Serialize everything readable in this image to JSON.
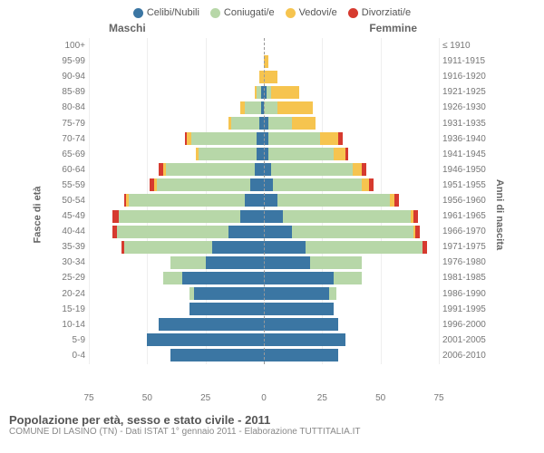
{
  "legend": [
    {
      "label": "Celibi/Nubili",
      "color": "#3b76a3"
    },
    {
      "label": "Coniugati/e",
      "color": "#b7d7a8"
    },
    {
      "label": "Vedovi/e",
      "color": "#f6c44f"
    },
    {
      "label": "Divorziati/e",
      "color": "#d63a2f"
    }
  ],
  "gender": {
    "m": "Maschi",
    "f": "Femmine"
  },
  "axis": {
    "left": "Fasce di età",
    "right": "Anni di nascita"
  },
  "xmax": 75,
  "xticks": [
    75,
    50,
    25,
    0,
    25,
    50,
    75
  ],
  "colors": {
    "single": "#3b76a3",
    "married": "#b7d7a8",
    "widowed": "#f6c44f",
    "divorced": "#d63a2f",
    "grid": "#eeeeee",
    "center": "#999999",
    "bg": "#ffffff"
  },
  "rows": [
    {
      "age": "100+",
      "birth": "≤ 1910",
      "m": [
        0,
        0,
        0,
        0
      ],
      "f": [
        0,
        0,
        0,
        0
      ]
    },
    {
      "age": "95-99",
      "birth": "1911-1915",
      "m": [
        0,
        0,
        0,
        0
      ],
      "f": [
        0,
        0,
        2,
        0
      ]
    },
    {
      "age": "90-94",
      "birth": "1916-1920",
      "m": [
        0,
        0,
        2,
        0
      ],
      "f": [
        0,
        0,
        6,
        0
      ]
    },
    {
      "age": "85-89",
      "birth": "1921-1925",
      "m": [
        1,
        2,
        1,
        0
      ],
      "f": [
        1,
        2,
        12,
        0
      ]
    },
    {
      "age": "80-84",
      "birth": "1926-1930",
      "m": [
        1,
        7,
        2,
        0
      ],
      "f": [
        0,
        6,
        15,
        0
      ]
    },
    {
      "age": "75-79",
      "birth": "1931-1935",
      "m": [
        2,
        12,
        1,
        0
      ],
      "f": [
        2,
        10,
        10,
        0
      ]
    },
    {
      "age": "70-74",
      "birth": "1936-1940",
      "m": [
        3,
        28,
        2,
        1
      ],
      "f": [
        2,
        22,
        8,
        2
      ]
    },
    {
      "age": "65-69",
      "birth": "1941-1945",
      "m": [
        3,
        25,
        1,
        0
      ],
      "f": [
        2,
        28,
        5,
        1
      ]
    },
    {
      "age": "60-64",
      "birth": "1946-1950",
      "m": [
        4,
        38,
        1,
        2
      ],
      "f": [
        3,
        35,
        4,
        2
      ]
    },
    {
      "age": "55-59",
      "birth": "1951-1955",
      "m": [
        6,
        40,
        1,
        2
      ],
      "f": [
        4,
        38,
        3,
        2
      ]
    },
    {
      "age": "50-54",
      "birth": "1956-1960",
      "m": [
        8,
        50,
        1,
        1
      ],
      "f": [
        6,
        48,
        2,
        2
      ]
    },
    {
      "age": "45-49",
      "birth": "1961-1965",
      "m": [
        10,
        52,
        0,
        3
      ],
      "f": [
        8,
        55,
        1,
        2
      ]
    },
    {
      "age": "40-44",
      "birth": "1966-1970",
      "m": [
        15,
        48,
        0,
        2
      ],
      "f": [
        12,
        52,
        1,
        2
      ]
    },
    {
      "age": "35-39",
      "birth": "1971-1975",
      "m": [
        22,
        38,
        0,
        1
      ],
      "f": [
        18,
        50,
        0,
        2
      ]
    },
    {
      "age": "30-34",
      "birth": "1976-1980",
      "m": [
        25,
        15,
        0,
        0
      ],
      "f": [
        20,
        22,
        0,
        0
      ]
    },
    {
      "age": "25-29",
      "birth": "1981-1985",
      "m": [
        35,
        8,
        0,
        0
      ],
      "f": [
        30,
        12,
        0,
        0
      ]
    },
    {
      "age": "20-24",
      "birth": "1986-1990",
      "m": [
        30,
        2,
        0,
        0
      ],
      "f": [
        28,
        3,
        0,
        0
      ]
    },
    {
      "age": "15-19",
      "birth": "1991-1995",
      "m": [
        32,
        0,
        0,
        0
      ],
      "f": [
        30,
        0,
        0,
        0
      ]
    },
    {
      "age": "10-14",
      "birth": "1996-2000",
      "m": [
        45,
        0,
        0,
        0
      ],
      "f": [
        32,
        0,
        0,
        0
      ]
    },
    {
      "age": "5-9",
      "birth": "2001-2005",
      "m": [
        50,
        0,
        0,
        0
      ],
      "f": [
        35,
        0,
        0,
        0
      ]
    },
    {
      "age": "0-4",
      "birth": "2006-2010",
      "m": [
        40,
        0,
        0,
        0
      ],
      "f": [
        32,
        0,
        0,
        0
      ]
    }
  ],
  "footer": {
    "title": "Popolazione per età, sesso e stato civile - 2011",
    "sub": "COMUNE DI LASINO (TN) - Dati ISTAT 1° gennaio 2011 - Elaborazione TUTTITALIA.IT"
  }
}
